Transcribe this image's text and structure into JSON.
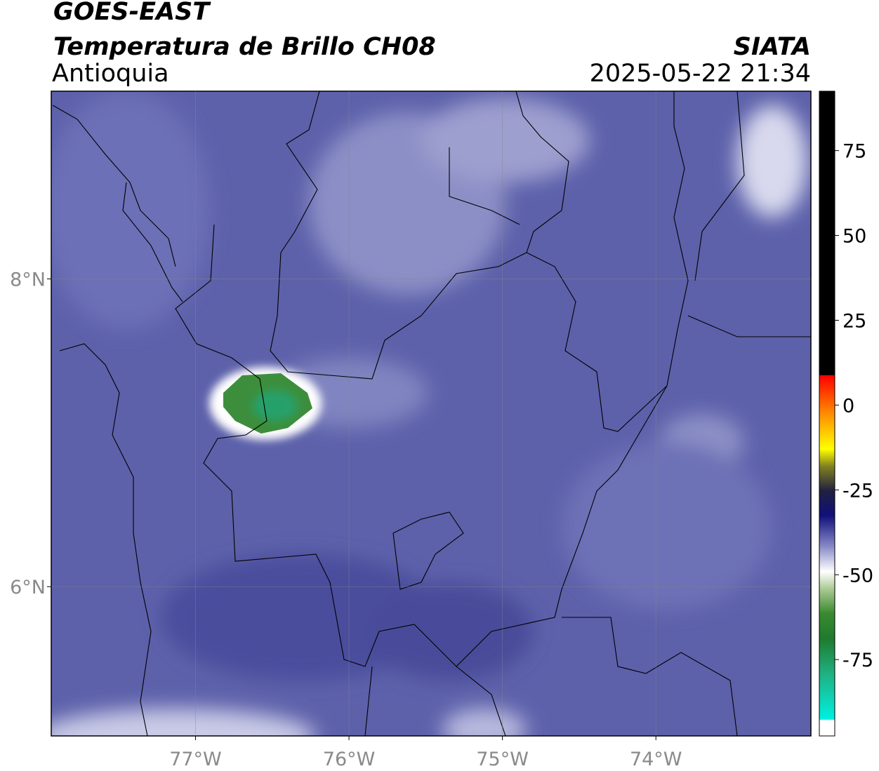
{
  "header": {
    "title": "GOES-EAST",
    "subtitle": "Temperatura de Brillo CH08",
    "region": "Antioquia",
    "source": "SIATA",
    "datetime": "2025-05-22 21:34"
  },
  "map": {
    "lon_range": [
      -77.94,
      -72.99
    ],
    "lat_range": [
      5.03,
      9.22
    ],
    "lon_ticks": [
      {
        "value": -77,
        "label": "77°W"
      },
      {
        "value": -76,
        "label": "76°W"
      },
      {
        "value": -75,
        "label": "75°W"
      },
      {
        "value": -74,
        "label": "74°W"
      }
    ],
    "lat_ticks": [
      {
        "value": 8,
        "label": "8°N"
      },
      {
        "value": 6,
        "label": "6°N"
      }
    ],
    "grid": true
  },
  "colorbar": {
    "range": [
      -97.5,
      92.5
    ],
    "ticks": [
      75,
      50,
      25,
      0,
      -25,
      -50,
      -75
    ]
  }
}
